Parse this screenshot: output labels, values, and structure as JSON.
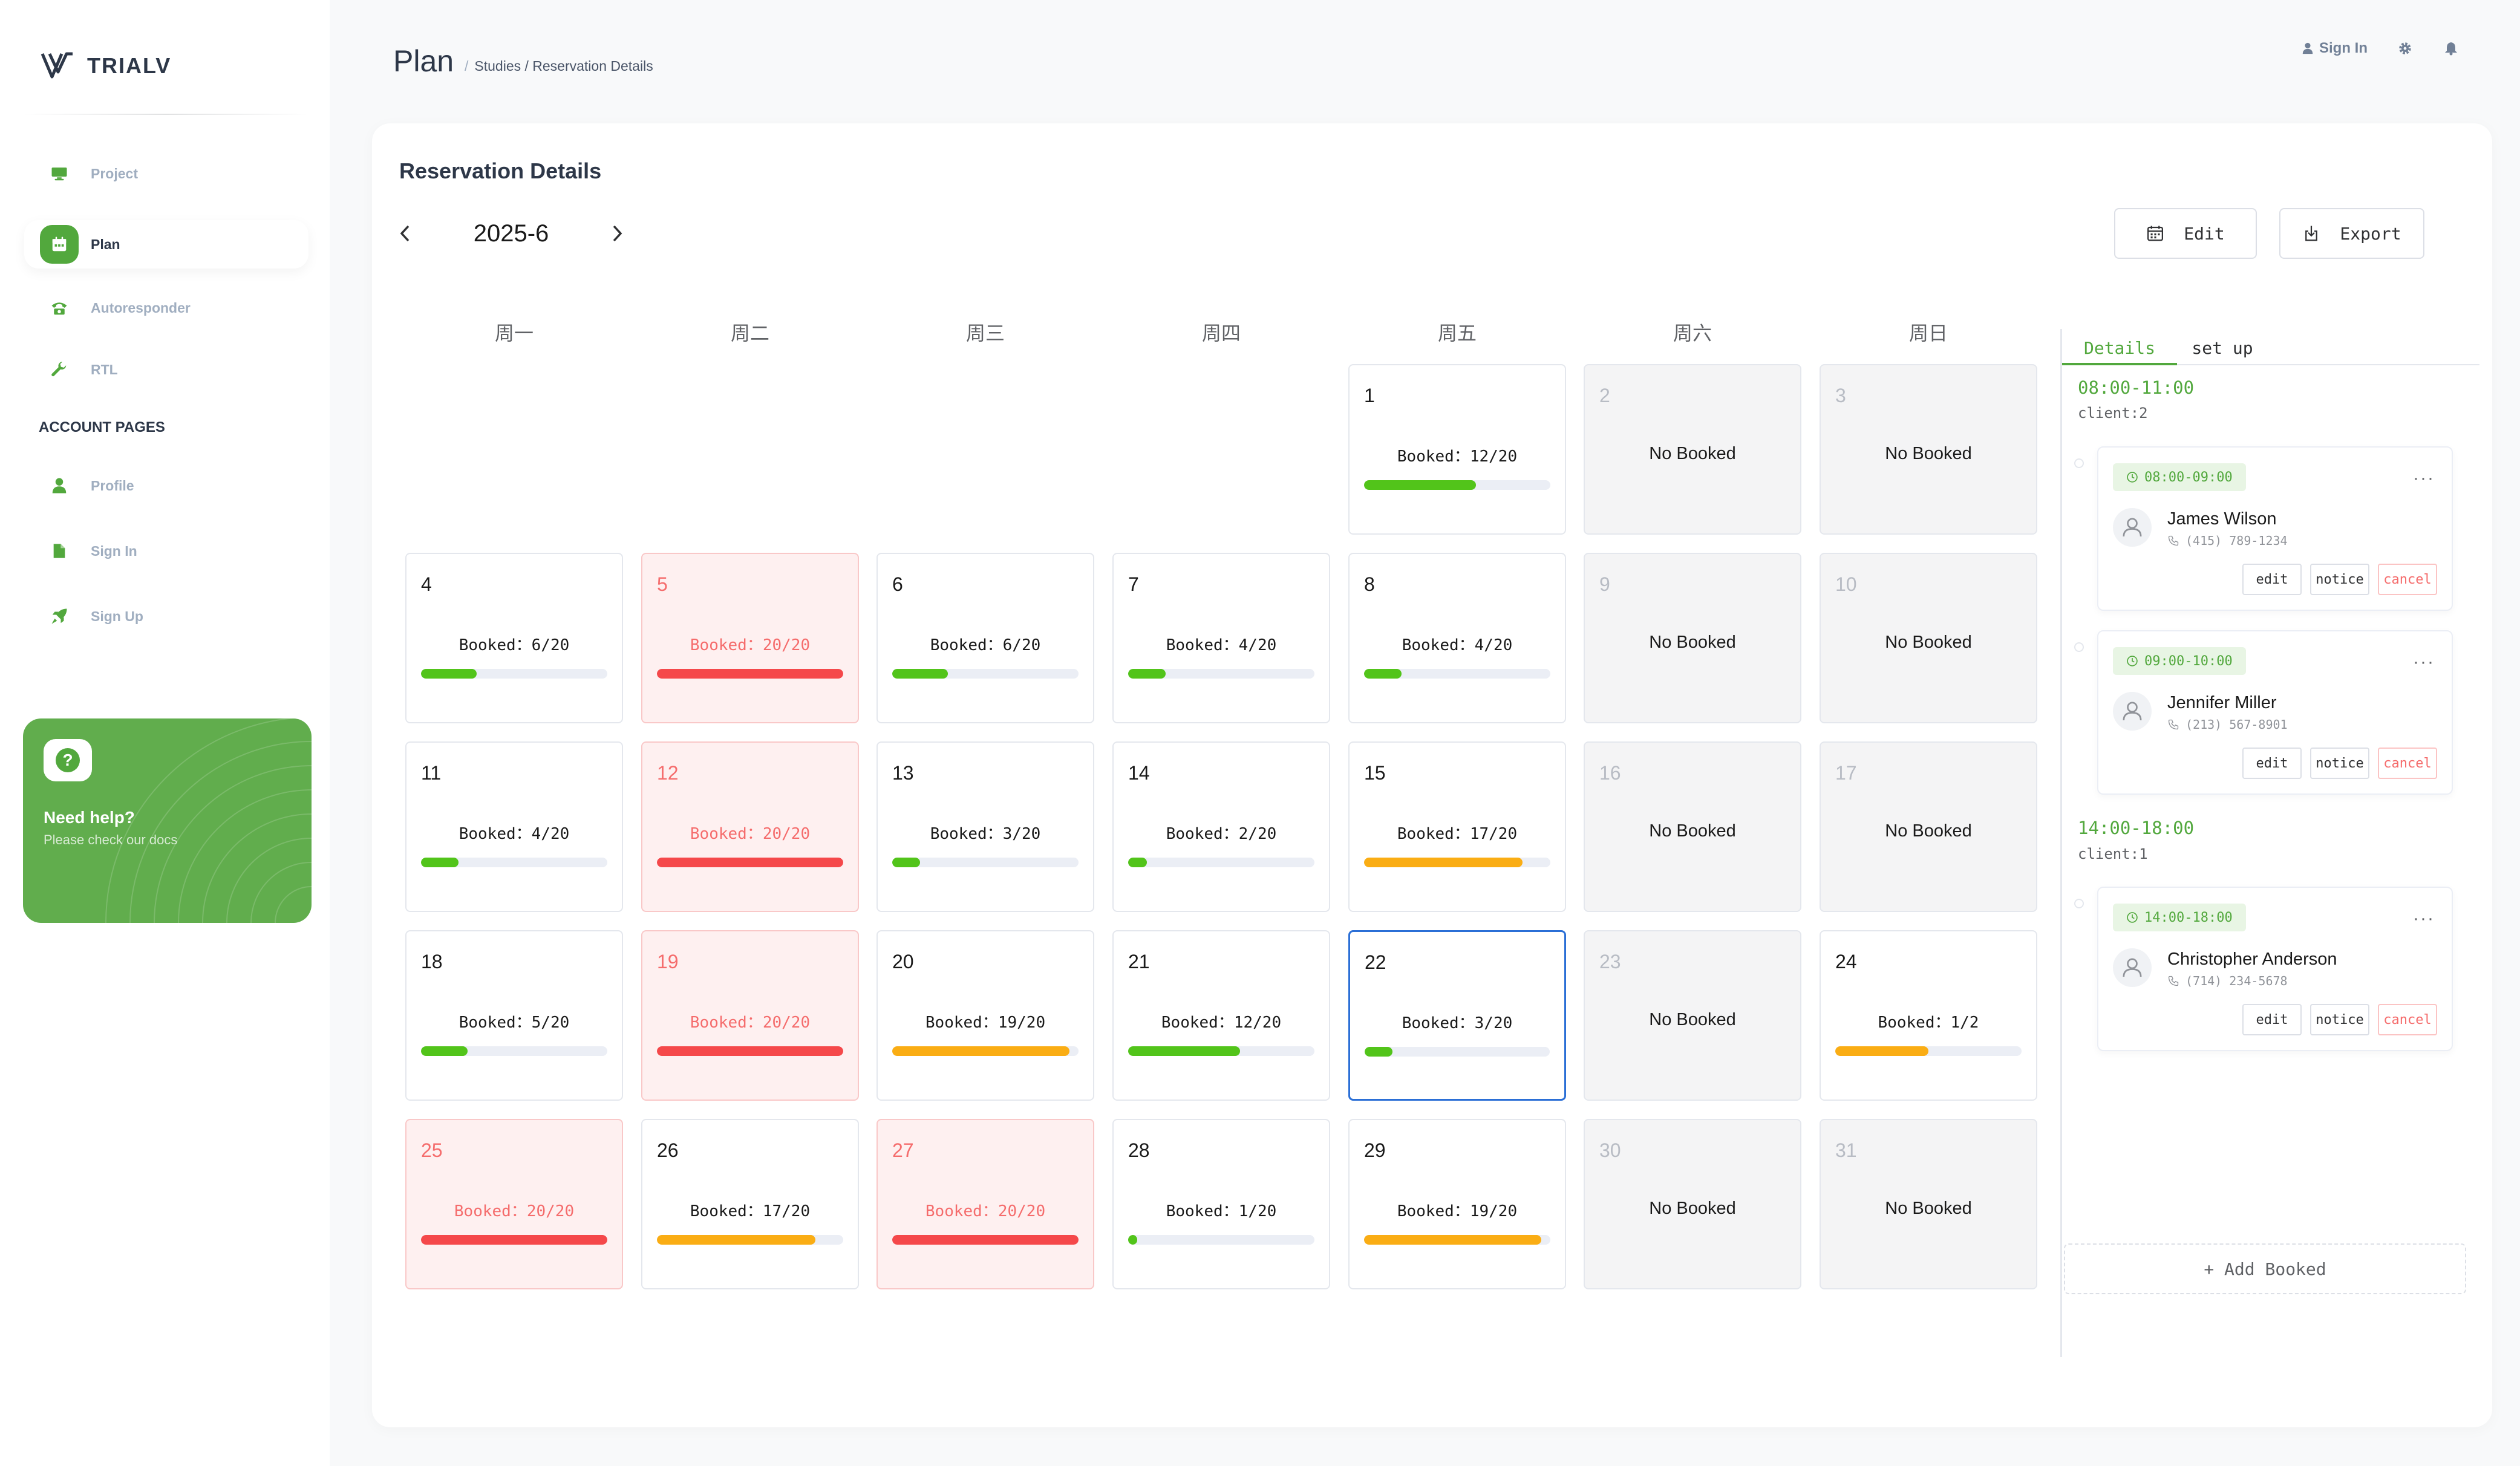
{
  "brand": {
    "name": "TRIALV"
  },
  "sidebar": {
    "items": [
      {
        "label": "Project",
        "icon": "monitor-icon",
        "active": false
      },
      {
        "label": "Plan",
        "icon": "calendar-icon",
        "active": true
      },
      {
        "label": "Autoresponder",
        "icon": "phone-icon",
        "active": false
      },
      {
        "label": "RTL",
        "icon": "wrench-icon",
        "active": false
      }
    ],
    "section_title": "ACCOUNT PAGES",
    "account_items": [
      {
        "label": "Profile",
        "icon": "person-icon"
      },
      {
        "label": "Sign In",
        "icon": "document-icon"
      },
      {
        "label": "Sign Up",
        "icon": "rocket-icon"
      }
    ],
    "help": {
      "icon_glyph": "?",
      "title": "Need help?",
      "subtitle": "Please check our docs"
    }
  },
  "header": {
    "title": "Plan",
    "breadcrumb_sep": "/",
    "breadcrumb": "Studies / Reservation Details",
    "sign_in": "Sign In"
  },
  "card": {
    "title": "Reservation Details",
    "month": "2025-6",
    "edit_label": "Edit",
    "export_label": "Export"
  },
  "colors": {
    "accent": "#52a83d",
    "bar_green": "#52c41a",
    "bar_orange": "#faad14",
    "bar_red": "#f5484a",
    "selected_border": "#2b6fd6"
  },
  "calendar": {
    "weekdays": [
      "周一",
      "周二",
      "周三",
      "周四",
      "周五",
      "周六",
      "周日"
    ],
    "days": [
      {
        "num": "1",
        "text": "Booked：12/20",
        "booked": 12,
        "capacity": 20
      },
      {
        "num": "2",
        "text": "No Booked"
      },
      {
        "num": "3",
        "text": "No Booked"
      },
      {
        "num": "4",
        "text": "Booked：6/20",
        "booked": 6,
        "capacity": 20
      },
      {
        "num": "5",
        "text": "Booked：20/20",
        "booked": 20,
        "capacity": 20
      },
      {
        "num": "6",
        "text": "Booked：6/20",
        "booked": 6,
        "capacity": 20
      },
      {
        "num": "7",
        "text": "Booked：4/20",
        "booked": 4,
        "capacity": 20
      },
      {
        "num": "8",
        "text": "Booked：4/20",
        "booked": 4,
        "capacity": 20
      },
      {
        "num": "9",
        "text": "No Booked"
      },
      {
        "num": "10",
        "text": "No Booked"
      },
      {
        "num": "11",
        "text": "Booked：4/20",
        "booked": 4,
        "capacity": 20
      },
      {
        "num": "12",
        "text": "Booked：20/20",
        "booked": 20,
        "capacity": 20
      },
      {
        "num": "13",
        "text": "Booked：3/20",
        "booked": 3,
        "capacity": 20
      },
      {
        "num": "14",
        "text": "Booked：2/20",
        "booked": 2,
        "capacity": 20
      },
      {
        "num": "15",
        "text": "Booked：17/20",
        "booked": 17,
        "capacity": 20
      },
      {
        "num": "16",
        "text": "No Booked"
      },
      {
        "num": "17",
        "text": "No Booked"
      },
      {
        "num": "18",
        "text": "Booked：5/20",
        "booked": 5,
        "capacity": 20
      },
      {
        "num": "19",
        "text": "Booked：20/20",
        "booked": 20,
        "capacity": 20
      },
      {
        "num": "20",
        "text": "Booked：19/20",
        "booked": 19,
        "capacity": 20
      },
      {
        "num": "21",
        "text": "Booked：12/20",
        "booked": 12,
        "capacity": 20
      },
      {
        "num": "22",
        "text": "Booked：3/20",
        "booked": 3,
        "capacity": 20,
        "selected": true
      },
      {
        "num": "23",
        "text": "No Booked"
      },
      {
        "num": "24",
        "text": "Booked：1/2",
        "booked": 1,
        "capacity": 2
      },
      {
        "num": "25",
        "text": "Booked：20/20",
        "booked": 20,
        "capacity": 20
      },
      {
        "num": "26",
        "text": "Booked：17/20",
        "booked": 17,
        "capacity": 20
      },
      {
        "num": "27",
        "text": "Booked：20/20",
        "booked": 20,
        "capacity": 20
      },
      {
        "num": "28",
        "text": "Booked：1/20",
        "booked": 1,
        "capacity": 20
      },
      {
        "num": "29",
        "text": "Booked：19/20",
        "booked": 19,
        "capacity": 20
      },
      {
        "num": "30",
        "text": "No Booked"
      },
      {
        "num": "31",
        "text": "No Booked"
      }
    ]
  },
  "details": {
    "tabs": [
      "Details",
      "set up"
    ],
    "slots": [
      {
        "time": "08:00-11:00",
        "client_count": "client:2",
        "bookings": [
          {
            "tag": "08:00-09:00",
            "name": "James Wilson",
            "phone": "(415) 789-1234"
          },
          {
            "tag": "09:00-10:00",
            "name": "Jennifer Miller",
            "phone": "(213) 567-8901"
          }
        ]
      },
      {
        "time": "14:00-18:00",
        "client_count": "client:1",
        "bookings": [
          {
            "tag": "14:00-18:00",
            "name": "Christopher Anderson",
            "phone": "(714) 234-5678"
          }
        ]
      }
    ],
    "more_glyph": "···",
    "actions": {
      "edit": "edit",
      "notice": "notice",
      "cancel": "cancel"
    },
    "add_label": "+ Add Booked"
  }
}
